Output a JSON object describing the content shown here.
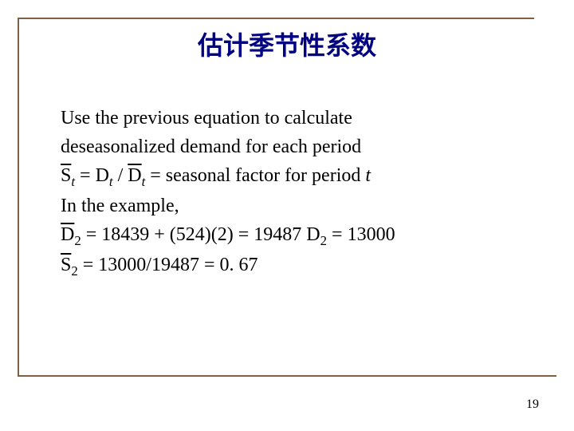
{
  "slide": {
    "title": "估计季节性系数",
    "page_number": "19",
    "colors": {
      "frame": "#806040",
      "title": "#000080",
      "text": "#000000",
      "background": "#ffffff"
    },
    "typography": {
      "title_fontsize": 32,
      "body_fontsize": 24,
      "title_font": "SimSun",
      "body_font": "Times New Roman"
    },
    "body": {
      "line1": "Use the previous equation to calculate",
      "line2": "deseasonalized demand for each period",
      "eq1_lhs_sym": "S",
      "eq1_lhs_sub": "t",
      "eq1_mid": " = D",
      "eq1_mid_sub": "t",
      "eq1_div": " / ",
      "eq1_rhs_sym": "D",
      "eq1_rhs_sub": "t",
      "eq1_tail_a": "  = seasonal factor for period ",
      "eq1_tail_it": "t",
      "line4": "In the example,",
      "eq2_lhs_sym": "D",
      "eq2_lhs_sub": "2",
      "eq2_body": " = 18439 + (524)(2) = 19487    D",
      "eq2_rhs_sub": "2",
      "eq2_tail": " = 13000",
      "eq3_lhs_sym": "S",
      "eq3_lhs_sub": "2",
      "eq3_body": " = 13000/19487 = 0. 67"
    }
  }
}
